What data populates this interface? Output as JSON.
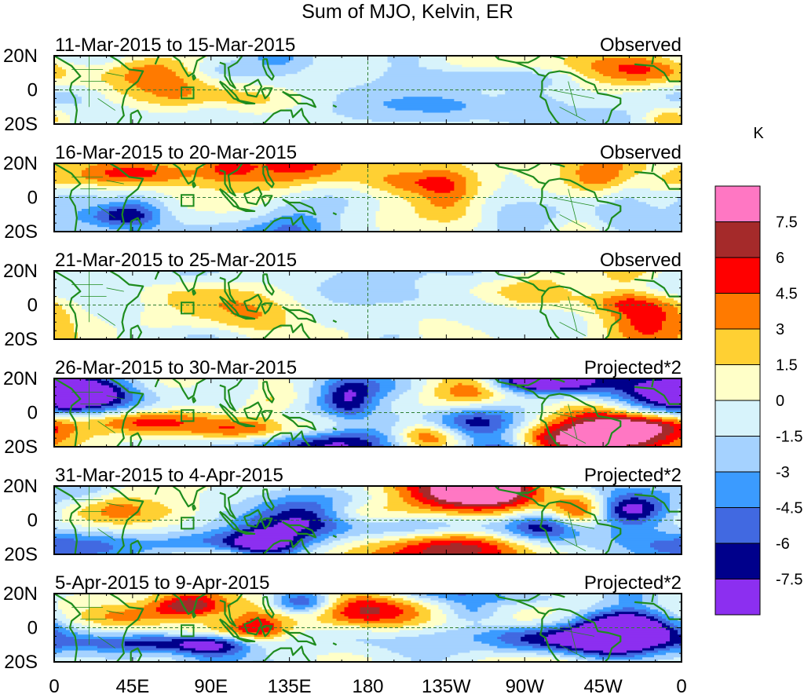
{
  "chart_data": {
    "type": "heatmap",
    "title": "Sum of MJO, Kelvin, ER",
    "units": "K",
    "x_ticks": [
      "0",
      "45E",
      "90E",
      "135E",
      "180",
      "135W",
      "90W",
      "45W",
      "0"
    ],
    "x_tick_values": [
      0,
      45,
      90,
      135,
      180,
      225,
      270,
      315,
      360
    ],
    "y_ticks": [
      "20N",
      "0",
      "20S"
    ],
    "y_tick_values": [
      20,
      0,
      -20
    ],
    "xlim": [
      0,
      360
    ],
    "ylim": [
      -20,
      20
    ],
    "colorbar": {
      "labels": [
        "7.5",
        "6",
        "4.5",
        "3",
        "1.5",
        "0",
        "-1.5",
        "-3",
        "-4.5",
        "-6",
        "-7.5"
      ],
      "levels": [
        7.5,
        6,
        4.5,
        3,
        1.5,
        0,
        -1.5,
        -3,
        -4.5,
        -6,
        -7.5
      ],
      "colors": [
        "#ff77c3",
        "#a52a2a",
        "#ff0000",
        "#ff7a00",
        "#ffd033",
        "#ffffc8",
        "#d7f3fb",
        "#a5d2ff",
        "#3b9bff",
        "#4169e1",
        "#00008b",
        "#8c2ff0"
      ]
    },
    "panels": [
      {
        "period": "11-Mar-2015 to 15-Mar-2015",
        "label": "Observed",
        "amp": 0.45,
        "seed": 1
      },
      {
        "period": "16-Mar-2015 to 20-Mar-2015",
        "label": "Observed",
        "amp": 0.55,
        "seed": 2
      },
      {
        "period": "21-Mar-2015 to 25-Mar-2015",
        "label": "Observed",
        "amp": 0.5,
        "seed": 3
      },
      {
        "period": "26-Mar-2015 to 30-Mar-2015",
        "label": "Projected*2",
        "amp": 1.0,
        "seed": 4
      },
      {
        "period": "31-Mar-2015 to 4-Apr-2015",
        "label": "Projected*2",
        "amp": 1.1,
        "seed": 5
      },
      {
        "period": "5-Apr-2015 to 9-Apr-2015",
        "label": "Projected*2",
        "amp": 1.0,
        "seed": 6
      }
    ]
  }
}
